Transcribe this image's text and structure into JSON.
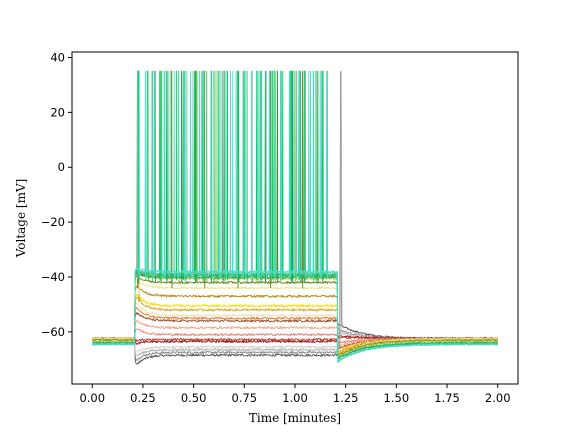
{
  "chart_data": {
    "type": "line",
    "title": "",
    "xlabel": "Time [minutes]",
    "ylabel": "Voltage [mV]",
    "xlim": [
      -0.1,
      2.1
    ],
    "ylim": [
      -79,
      42
    ],
    "xticks": [
      0.0,
      0.25,
      0.5,
      0.75,
      1.0,
      1.25,
      1.5,
      1.75,
      2.0
    ],
    "xtick_labels": [
      "0.00",
      "0.25",
      "0.50",
      "0.75",
      "1.00",
      "1.25",
      "1.50",
      "1.75",
      "2.00"
    ],
    "yticks": [
      -60,
      -40,
      -20,
      0,
      20,
      40
    ],
    "ytick_labels": [
      "−60",
      "−40",
      "−20",
      "0",
      "20",
      "40"
    ],
    "grid": false,
    "legend": "none",
    "stim_window": [
      0.21,
      1.21
    ],
    "series": [
      {
        "color": "#555555",
        "baseline": -62.5,
        "stim_level": -68.5,
        "peak": -73,
        "after_level": -62.5,
        "rebound": -57,
        "spikes": 0
      },
      {
        "color": "#888888",
        "baseline": -62.5,
        "stim_level": -67.5,
        "peak": -71,
        "after_level": -62.5,
        "rebound": -59,
        "spikes": 0
      },
      {
        "color": "#b0b0b0",
        "baseline": -62.5,
        "stim_level": -66.5,
        "peak": -69.5,
        "after_level": -62.5,
        "rebound": -60,
        "spikes": 0
      },
      {
        "color": "#d2d2d2",
        "baseline": -62.5,
        "stim_level": -65.5,
        "peak": -68,
        "after_level": -62.5,
        "rebound": -60.5,
        "spikes": 0
      },
      {
        "color": "#8b1a1a",
        "baseline": -62.3,
        "stim_level": -63.5,
        "peak": -64.5,
        "after_level": -62.3,
        "rebound": -61.5,
        "spikes": 0
      },
      {
        "color": "#c0392b",
        "baseline": -62.4,
        "stim_level": -62.8,
        "peak": -63.2,
        "after_level": -62.4,
        "rebound": -62,
        "spikes": 0
      },
      {
        "color": "#f08070",
        "baseline": -62.4,
        "stim_level": -61,
        "peak": -58,
        "after_level": -62.4,
        "rebound": -64,
        "spikes": 0
      },
      {
        "color": "#f4a582",
        "baseline": -62.5,
        "stim_level": -58.5,
        "peak": -55,
        "after_level": -62.5,
        "rebound": -65,
        "spikes": 0
      },
      {
        "color": "#a0522d",
        "baseline": -62.5,
        "stim_level": -56,
        "peak": -52,
        "after_level": -62.5,
        "rebound": -66,
        "spikes": 0
      },
      {
        "color": "#e08030",
        "baseline": -62.5,
        "stim_level": -55,
        "peak": -50,
        "after_level": -62.5,
        "rebound": -66.5,
        "spikes": 0
      },
      {
        "color": "#f5deb3",
        "baseline": -62.5,
        "stim_level": -54,
        "peak": -48,
        "after_level": -62.5,
        "rebound": -67,
        "spikes": 0
      },
      {
        "color": "#daa520",
        "baseline": -62.5,
        "stim_level": -52,
        "peak": -46,
        "after_level": -62.5,
        "rebound": -67.5,
        "spikes": 0
      },
      {
        "color": "#ffd700",
        "baseline": -62.5,
        "stim_level": -50.5,
        "peak": -45,
        "after_level": -62.5,
        "rebound": -68,
        "spikes": 0
      },
      {
        "color": "#b8860b",
        "baseline": -62.5,
        "stim_level": -47,
        "peak": -42,
        "after_level": -62.5,
        "rebound": -68.5,
        "spikes": 1
      },
      {
        "color": "#f0e68c",
        "baseline": -62.5,
        "stim_level": -44,
        "peak": -40,
        "after_level": -62.5,
        "rebound": -69,
        "spikes": 1
      },
      {
        "color": "#6b8e23",
        "baseline": -63,
        "stim_level": -42,
        "peak": -39,
        "after_level": -63,
        "rebound": -69,
        "spikes": 6
      },
      {
        "color": "#9acd32",
        "baseline": -63.5,
        "stim_level": -40.5,
        "peak": -38,
        "after_level": -63.5,
        "rebound": -69.5,
        "spikes": 10
      },
      {
        "color": "#2e8b57",
        "baseline": -64,
        "stim_level": -40,
        "peak": -38,
        "after_level": -64,
        "rebound": -70,
        "spikes": 14
      },
      {
        "color": "#3cb371",
        "baseline": -64,
        "stim_level": -39.5,
        "peak": -37.5,
        "after_level": -64,
        "rebound": -70,
        "spikes": 18
      },
      {
        "color": "#00c853",
        "baseline": -64.5,
        "stim_level": -39,
        "peak": -37,
        "after_level": -64.5,
        "rebound": -71,
        "spikes": 22
      },
      {
        "color": "#66cdaa",
        "baseline": -64.5,
        "stim_level": -38.5,
        "peak": -37,
        "after_level": -64.5,
        "rebound": -71,
        "spikes": 26
      },
      {
        "color": "#40e0d0",
        "baseline": -64.5,
        "stim_level": -38,
        "peak": -36.5,
        "after_level": -64.5,
        "rebound": -71,
        "spikes": 30
      }
    ]
  }
}
